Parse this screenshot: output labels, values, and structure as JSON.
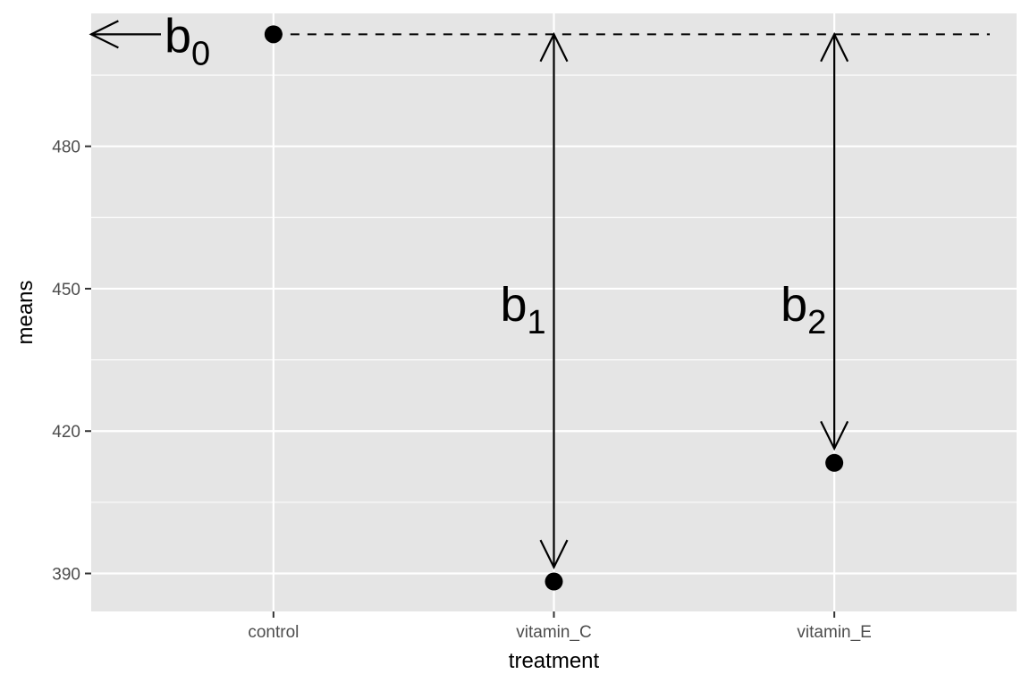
{
  "chart_data": {
    "type": "scatter",
    "xlabel": "treatment",
    "ylabel": "means",
    "categories": [
      "control",
      "vitamin_C",
      "vitamin_E"
    ],
    "values": [
      503.6,
      388.3,
      413.3
    ],
    "ylim": [
      382,
      508
    ],
    "yticks": [
      390,
      420,
      450,
      480
    ],
    "grid": true,
    "reference_line": {
      "y": 503.6,
      "style": "dashed"
    },
    "coefficients": [
      {
        "label": "b",
        "subscript": "0",
        "points_to": "control"
      },
      {
        "label": "b",
        "subscript": "1",
        "from": "control",
        "to": "vitamin_C"
      },
      {
        "label": "b",
        "subscript": "2",
        "from": "control",
        "to": "vitamin_E"
      }
    ],
    "colors": {
      "panel": "#e5e5e5",
      "grid": "#ffffff",
      "ink": "#000000",
      "tick_text": "#4d4d4d"
    }
  }
}
